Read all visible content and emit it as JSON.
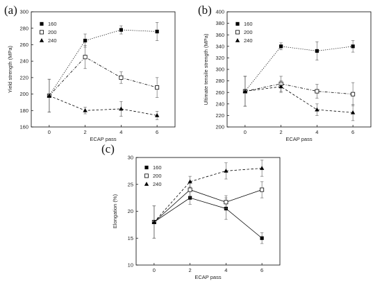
{
  "chart_data": [
    {
      "type": "line",
      "panel": "(a)",
      "xlabel": "ECAP pass",
      "ylabel": "Yield strength (MPa)",
      "x": [
        0,
        2,
        4,
        6
      ],
      "xlim": [
        -1,
        7
      ],
      "ylim": [
        160,
        300
      ],
      "yticks": [
        160,
        180,
        200,
        220,
        240,
        260,
        280,
        300
      ],
      "xticks": [
        0,
        2,
        4,
        6
      ],
      "legend_position": "top-left",
      "series": [
        {
          "name": "160",
          "marker": "filled-square",
          "line": "dotted",
          "values": [
            198,
            265,
            278,
            276
          ],
          "errors": [
            20,
            8,
            5,
            11
          ]
        },
        {
          "name": "200",
          "marker": "open-square",
          "line": "dash-dot",
          "values": [
            198,
            245,
            220,
            208
          ],
          "errors": [
            20,
            14,
            7,
            12
          ]
        },
        {
          "name": "240",
          "marker": "filled-triangle",
          "line": "dashed",
          "values": [
            198,
            180,
            182,
            174
          ],
          "errors": [
            20,
            4,
            9,
            5
          ]
        }
      ]
    },
    {
      "type": "line",
      "panel": "(b)",
      "xlabel": "ECAP pass",
      "ylabel": "Ultimate tensile strength (MPa)",
      "x": [
        0,
        2,
        4,
        6
      ],
      "xlim": [
        -1,
        7
      ],
      "ylim": [
        200,
        400
      ],
      "yticks": [
        200,
        220,
        240,
        260,
        280,
        300,
        320,
        340,
        360,
        380,
        400
      ],
      "xticks": [
        0,
        2,
        4,
        6
      ],
      "legend_position": "top-left",
      "series": [
        {
          "name": "160",
          "marker": "filled-square",
          "line": "dotted",
          "values": [
            262,
            340,
            332,
            340
          ],
          "errors": [
            26,
            6,
            16,
            10
          ]
        },
        {
          "name": "200",
          "marker": "open-square",
          "line": "dash-dot",
          "values": [
            262,
            275,
            262,
            257
          ],
          "errors": [
            26,
            13,
            12,
            20
          ]
        },
        {
          "name": "240",
          "marker": "filled-triangle",
          "line": "dashed",
          "values": [
            262,
            270,
            230,
            225
          ],
          "errors": [
            26,
            10,
            10,
            14
          ]
        }
      ]
    },
    {
      "type": "line",
      "panel": "(c)",
      "xlabel": "ECAP pass",
      "ylabel": "Elongation (%)",
      "x": [
        0,
        2,
        4,
        6
      ],
      "xlim": [
        -1,
        7
      ],
      "ylim": [
        10,
        30
      ],
      "yticks": [
        10,
        15,
        20,
        25,
        30
      ],
      "xticks": [
        0,
        2,
        4,
        6
      ],
      "legend_position": "top-left",
      "series": [
        {
          "name": "160",
          "marker": "filled-square",
          "line": "solid",
          "values": [
            18,
            22.5,
            20.5,
            15
          ],
          "errors": [
            3,
            1.2,
            2,
            1
          ]
        },
        {
          "name": "200",
          "marker": "open-square",
          "line": "solid",
          "values": [
            18,
            24,
            21.7,
            24
          ],
          "errors": [
            3,
            1.5,
            1.2,
            1.5
          ]
        },
        {
          "name": "240",
          "marker": "filled-triangle",
          "line": "dashed",
          "values": [
            18,
            25.5,
            27.5,
            28
          ],
          "errors": [
            3,
            1,
            1.5,
            1.5
          ]
        }
      ]
    }
  ]
}
